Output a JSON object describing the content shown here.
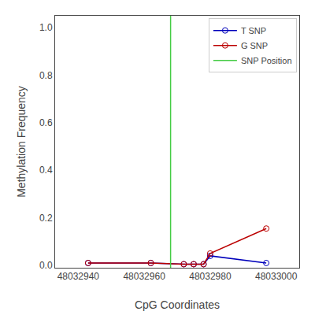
{
  "chart_data": {
    "type": "line",
    "xlabel": "CpG Coordinates",
    "ylabel": "Methylation Frequency",
    "x": [
      48032943,
      48032962,
      48032972,
      48032975,
      48032978,
      48032980,
      48032997
    ],
    "series": [
      {
        "name": "T SNP",
        "color": "#0000BB",
        "marker": "circle",
        "values": [
          0.01,
          0.01,
          0.005,
          0.005,
          0.005,
          0.04,
          0.01
        ]
      },
      {
        "name": "G SNP",
        "color": "#BB0000",
        "marker": "circle",
        "values": [
          0.01,
          0.01,
          0.005,
          0.005,
          0.005,
          0.05,
          0.155
        ]
      },
      {
        "name": "SNP Position",
        "type": "vline",
        "color": "#44CC44",
        "x": [
          48032968
        ]
      }
    ],
    "xlim": [
      48032933,
      48033007
    ],
    "ylim": [
      -0.01,
      1.05
    ],
    "xticks": [
      48032940,
      48032960,
      48032980,
      48033000
    ],
    "yticks": [
      {
        "value": 0.0,
        "label": "0.0"
      },
      0.2,
      0.4,
      0.6,
      0.8,
      {
        "value": 1.0,
        "label": "1.0"
      }
    ],
    "grid": false,
    "legend": "upper right"
  }
}
